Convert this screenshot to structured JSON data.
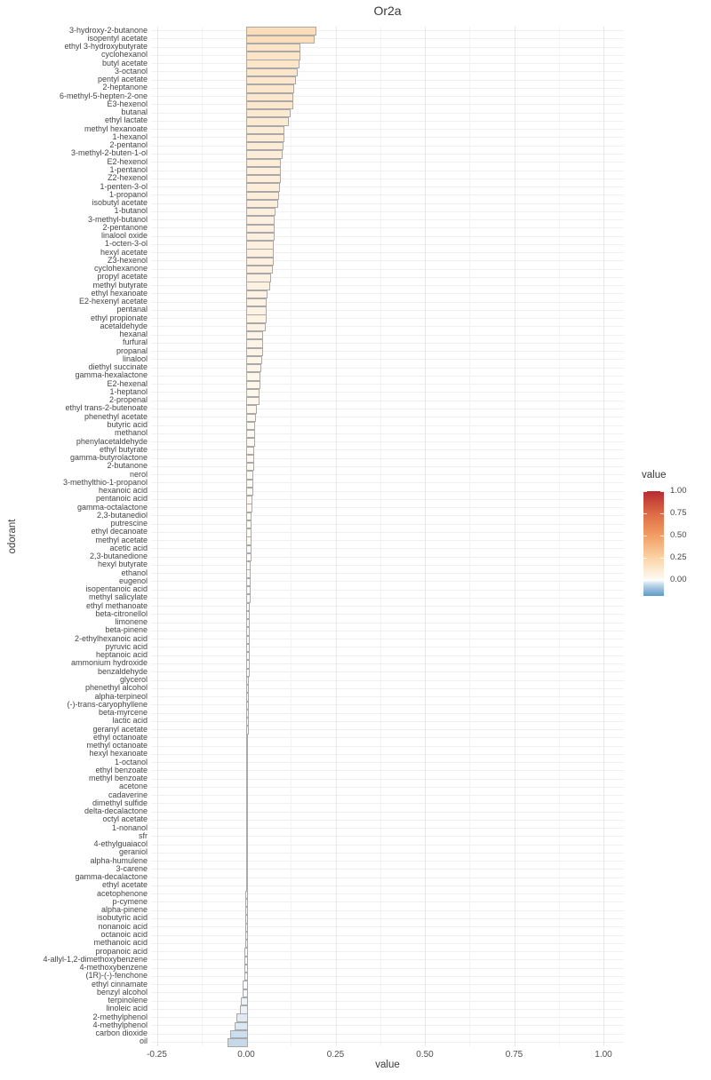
{
  "title": "Or2a",
  "x_axis": {
    "label": "value",
    "tick_labels": [
      "-0.25",
      "0.00",
      "0.25",
      "0.50",
      "0.75",
      "1.00"
    ],
    "tick_values": [
      -0.25,
      0.0,
      0.25,
      0.5,
      0.75,
      1.0
    ],
    "minor_tick_values": [
      -0.125,
      0.125,
      0.375,
      0.625,
      0.875
    ]
  },
  "y_axis": {
    "label": "odorant"
  },
  "legend": {
    "title": "value",
    "tick_labels": [
      "1.00",
      "0.75",
      "0.50",
      "0.25",
      "0.00"
    ],
    "tick_values": [
      1.0,
      0.75,
      0.5,
      0.25,
      0.0
    ],
    "domain_top": 1.0,
    "domain_bottom": -0.18
  },
  "colors": {
    "background": "#ffffff",
    "bar_border": "#a9a9a9",
    "grid_major": "#e7e7e7",
    "grid_minor": "#f3f3f3",
    "grid_row": "#f0f0f0",
    "text": "#454545",
    "color_scale_stops": [
      {
        "v": 1.0,
        "c": "#b62b31"
      },
      {
        "v": 0.75,
        "c": "#dd6a45"
      },
      {
        "v": 0.5,
        "c": "#f29e64"
      },
      {
        "v": 0.25,
        "c": "#fbd3a6"
      },
      {
        "v": 0.1,
        "c": "#fdecd6"
      },
      {
        "v": 0.05,
        "c": "#fdf3e5"
      },
      {
        "v": 0.02,
        "c": "#fdf8f0"
      },
      {
        "v": 0.0,
        "c": "#fefefe"
      },
      {
        "v": -0.02,
        "c": "#e9eff6"
      },
      {
        "v": -0.04,
        "c": "#d2e1ee"
      },
      {
        "v": -0.06,
        "c": "#bdd4e7"
      },
      {
        "v": -0.1,
        "c": "#9cc0db"
      },
      {
        "v": -0.18,
        "c": "#5b9bc9"
      }
    ]
  },
  "chart_data": {
    "type": "bar",
    "orientation": "horizontal",
    "title": "Or2a",
    "xlabel": "value",
    "ylabel": "odorant",
    "xlim": [
      -0.27,
      1.06
    ],
    "legend_title": "value",
    "fill_scale": "diverging blue-white-red mapped to bar value, domain -0.18 to 1.00",
    "grid": true,
    "categories": [
      "3-hydroxy-2-butanone",
      "isopentyl acetate",
      "ethyl 3-hydroxybutyrate",
      "cyclohexanol",
      "butyl acetate",
      "3-octanol",
      "pentyl acetate",
      "2-heptanone",
      "6-methyl-5-hepten-2-one",
      "E3-hexenol",
      "butanal",
      "ethyl lactate",
      "methyl hexanoate",
      "1-hexanol",
      "2-pentanol",
      "3-methyl-2-buten-1-ol",
      "E2-hexenol",
      "1-pentanol",
      "Z2-hexenol",
      "1-penten-3-ol",
      "1-propanol",
      "isobutyl acetate",
      "1-butanol",
      "3-methyl-butanol",
      "2-pentanone",
      "linalool oxide",
      "1-octen-3-ol",
      "hexyl acetate",
      "Z3-hexenol",
      "cyclohexanone",
      "propyl acetate",
      "methyl butyrate",
      "ethyl hexanoate",
      "E2-hexenyl acetate",
      "pentanal",
      "ethyl propionate",
      "acetaldehyde",
      "hexanal",
      "furfural",
      "propanal",
      "linalool",
      "diethyl succinate",
      "gamma-hexalactone",
      "E2-hexenal",
      "1-heptanol",
      "2-propenal",
      "ethyl trans-2-butenoate",
      "phenethyl acetate",
      "butyric acid",
      "methanol",
      "phenylacetaldehyde",
      "ethyl butyrate",
      "gamma-butyrolactone",
      "2-butanone",
      "nerol",
      "3-methylthio-1-propanol",
      "hexanoic acid",
      "pentanoic acid",
      "gamma-octalactone",
      "2,3-butanediol",
      "putrescine",
      "ethyl decanoate",
      "methyl acetate",
      "acetic acid",
      "2,3-butanedione",
      "hexyl butyrate",
      "ethanol",
      "eugenol",
      "isopentanoic acid",
      "methyl salicylate",
      "ethyl methanoate",
      "beta-citronellol",
      "limonene",
      "beta-pinene",
      "2-ethylhexanoic acid",
      "pyruvic acid",
      "heptanoic acid",
      "ammonium hydroxide",
      "benzaldehyde",
      "glycerol",
      "phenethyl alcohol",
      "alpha-terpineol",
      "(-)-trans-caryophyllene",
      "beta-myrcene",
      "lactic acid",
      "geranyl acetate",
      "ethyl octanoate",
      "methyl octanoate",
      "hexyl hexanoate",
      "1-octanol",
      "ethyl benzoate",
      "methyl benzoate",
      "acetone",
      "cadaverine",
      "dimethyl sulfide",
      "delta-decalactone",
      "octyl acetate",
      "1-nonanol",
      "sfr",
      "4-ethylguaiacol",
      "geraniol",
      "alpha-humulene",
      "3-carene",
      "gamma-decalactone",
      "ethyl acetate",
      "acetophenone",
      "p-cymene",
      "alpha-pinene",
      "isobutyric acid",
      "nonanoic acid",
      "octanoic acid",
      "methanoic acid",
      "propanoic acid",
      "4-allyl-1,2-dimethoxybenzene",
      "4-methoxybenzene",
      "(1R)-(-)-fenchone",
      "ethyl cinnamate",
      "benzyl alcohol",
      "terpinolene",
      "linoleic acid",
      "2-methylphenol",
      "4-methylphenol",
      "carbon dioxide",
      "oil"
    ],
    "values": [
      0.191,
      0.186,
      0.147,
      0.146,
      0.144,
      0.139,
      0.134,
      0.13,
      0.128,
      0.126,
      0.12,
      0.115,
      0.103,
      0.101,
      0.099,
      0.098,
      0.093,
      0.091,
      0.091,
      0.09,
      0.086,
      0.084,
      0.077,
      0.075,
      0.074,
      0.074,
      0.073,
      0.072,
      0.071,
      0.07,
      0.065,
      0.063,
      0.054,
      0.053,
      0.052,
      0.051,
      0.05,
      0.043,
      0.042,
      0.042,
      0.041,
      0.037,
      0.035,
      0.034,
      0.033,
      0.032,
      0.025,
      0.022,
      0.021,
      0.02,
      0.019,
      0.018,
      0.018,
      0.017,
      0.016,
      0.015,
      0.014,
      0.013,
      0.012,
      0.011,
      0.01,
      0.01,
      0.01,
      0.009,
      0.009,
      0.008,
      0.008,
      0.007,
      0.007,
      0.007,
      0.006,
      0.006,
      0.006,
      0.005,
      0.005,
      0.005,
      0.004,
      0.004,
      0.004,
      0.003,
      0.003,
      0.003,
      0.002,
      0.002,
      0.002,
      0.002,
      0.001,
      0.001,
      0.001,
      0.001,
      0.001,
      0.0,
      0.0,
      0.0,
      0.0,
      0.0,
      0.0,
      0.0,
      0.0,
      -0.001,
      -0.001,
      -0.001,
      -0.001,
      -0.001,
      -0.001,
      -0.002,
      -0.002,
      -0.002,
      -0.002,
      -0.003,
      -0.003,
      -0.003,
      -0.004,
      -0.004,
      -0.005,
      -0.006,
      -0.009,
      -0.011,
      -0.016,
      -0.018,
      -0.027,
      -0.032,
      -0.046,
      -0.052
    ]
  }
}
